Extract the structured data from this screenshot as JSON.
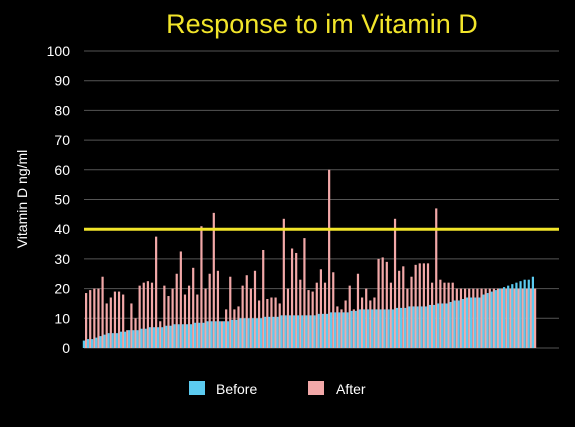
{
  "chart_data": {
    "type": "bar",
    "title": "Response to im Vitamin D",
    "xlabel": "",
    "ylabel": "Vitamin D ng/ml",
    "ylim": [
      0,
      100
    ],
    "yticks": [
      0,
      10,
      20,
      30,
      40,
      50,
      60,
      70,
      80,
      90,
      100
    ],
    "grid": true,
    "reference_line": {
      "value": 40,
      "color": "#f2e52a"
    },
    "legend_position": "bottom",
    "colors": {
      "before": "#5ccbf0",
      "after": "#f2a8a8",
      "background": "#000000",
      "grid": "#555555"
    },
    "series": [
      {
        "name": "Before",
        "values": [
          2.5,
          3,
          3,
          3.5,
          4,
          4.5,
          5,
          5,
          5,
          5.5,
          5.5,
          6,
          6,
          6,
          6.5,
          6.5,
          7,
          7,
          7,
          7,
          7.5,
          7.5,
          8,
          8,
          8,
          8,
          8,
          8.5,
          8.5,
          8.5,
          9,
          9,
          9,
          9,
          9,
          9,
          9.5,
          9.5,
          10,
          10,
          10,
          10,
          10,
          10,
          10.5,
          10.5,
          10.5,
          10.5,
          11,
          11,
          11,
          11,
          11,
          11,
          11,
          11,
          11,
          11.5,
          11.5,
          11.5,
          12,
          12,
          12,
          12,
          12,
          12.5,
          12.5,
          13,
          13,
          13,
          13,
          13,
          13,
          13,
          13,
          13,
          13.5,
          13.5,
          13.5,
          14,
          14,
          14,
          14,
          14,
          14.5,
          14.5,
          15,
          15,
          15,
          15.5,
          16,
          16,
          16.5,
          17,
          17,
          17,
          17,
          18,
          18.5,
          19,
          19.5,
          20,
          20.5,
          21,
          21.5,
          22,
          22.5,
          23,
          23,
          24
        ]
      },
      {
        "name": "After",
        "values": [
          18.5,
          19.5,
          20,
          20,
          24,
          15,
          17,
          19,
          19,
          18,
          6,
          15,
          10,
          21,
          22,
          22.5,
          22,
          37.5,
          9,
          21,
          17.5,
          20,
          25,
          32.5,
          18,
          21,
          27,
          18,
          41,
          20,
          25,
          45.5,
          26,
          9,
          13,
          24,
          13,
          14,
          21,
          24.5,
          20,
          26,
          16,
          33,
          16.5,
          17,
          17,
          15,
          43.5,
          20,
          33.5,
          32,
          23,
          37,
          19.5,
          19,
          22,
          26.5,
          22,
          60,
          25.5,
          14,
          13,
          16,
          21,
          13,
          25,
          17,
          20,
          16,
          17,
          30,
          30.5,
          29,
          22,
          43.5,
          26,
          27.5,
          20,
          24,
          28,
          28.5,
          28.5,
          28.5,
          22,
          47,
          23,
          22,
          22,
          22,
          20,
          20,
          20,
          20,
          20,
          20,
          20,
          20,
          20,
          20,
          20,
          20,
          20,
          20,
          20,
          20,
          20,
          20,
          20,
          20
        ]
      }
    ]
  }
}
